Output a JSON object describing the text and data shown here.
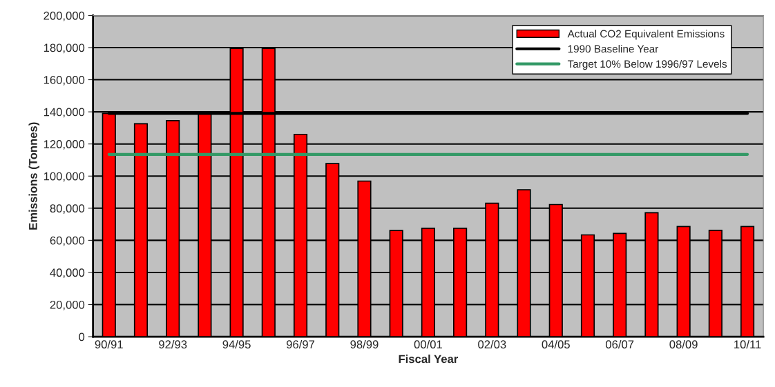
{
  "chart_data": {
    "type": "bar",
    "xlabel": "Fiscal Year",
    "ylabel": "Emissions (Tonnes)",
    "categories": [
      "90/91",
      null,
      "92/93",
      null,
      "94/95",
      null,
      "96/97",
      null,
      "98/99",
      null,
      "00/01",
      null,
      "02/03",
      null,
      "04/05",
      null,
      "06/07",
      null,
      "08/09",
      null,
      "10/11"
    ],
    "series": [
      {
        "name": "Actual CO2 Equivalent Emissions",
        "color": "#ff0000",
        "values": [
          139000,
          132600,
          134500,
          139000,
          179500,
          179500,
          126000,
          107800,
          96900,
          66100,
          67500,
          67500,
          83100,
          91500,
          82300,
          63400,
          64300,
          77200,
          68600,
          66200,
          68600
        ]
      },
      {
        "name": "1990 Baseline Year",
        "type": "line",
        "color": "#000000",
        "values": [
          139000,
          139000,
          139000,
          139000,
          139000,
          139000,
          139000,
          139000,
          139000,
          139000,
          139000,
          139000,
          139000,
          139000,
          139000,
          139000,
          139000,
          139000,
          139000,
          139000,
          139000
        ]
      },
      {
        "name": "Target 10% Below 1996/97 Levels",
        "type": "line",
        "color": "#339966",
        "values": [
          113500,
          113500,
          113500,
          113500,
          113500,
          113500,
          113500,
          113500,
          113500,
          113500,
          113500,
          113500,
          113500,
          113500,
          113500,
          113500,
          113500,
          113500,
          113500,
          113500,
          113500
        ]
      }
    ],
    "ylim": [
      0,
      200000
    ],
    "yticks": [
      0,
      {
        "value": 20000,
        "label": "20,000"
      },
      {
        "value": 40000,
        "label": "40,000"
      },
      {
        "value": 60000,
        "label": "60,000"
      },
      {
        "value": 80000,
        "label": "80,000"
      },
      {
        "value": 100000,
        "label": "100,000"
      },
      {
        "value": 120000,
        "label": "120,000"
      },
      {
        "value": 140000,
        "label": "140,000"
      },
      {
        "value": 160000,
        "label": "160,000"
      },
      {
        "value": 180000,
        "label": "180,000"
      },
      {
        "value": 200000,
        "label": "200,000"
      }
    ],
    "grid": "y",
    "legend": "top right",
    "marker": "none",
    "line_style": "solid"
  }
}
